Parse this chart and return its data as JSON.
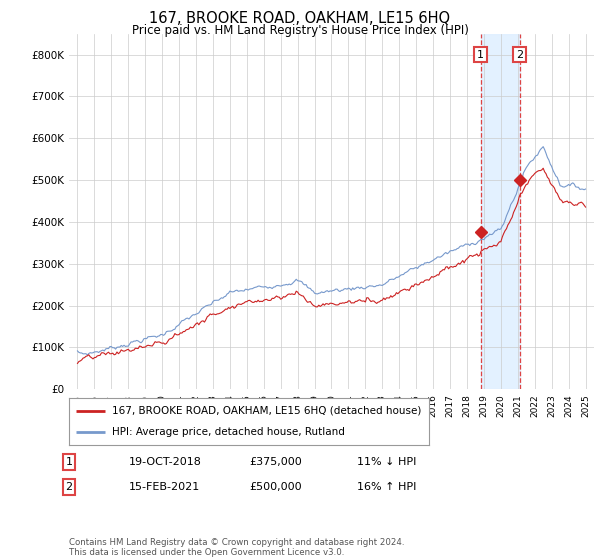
{
  "title": "167, BROOKE ROAD, OAKHAM, LE15 6HQ",
  "subtitle": "Price paid vs. HM Land Registry's House Price Index (HPI)",
  "ylabel_ticks": [
    "£0",
    "£100K",
    "£200K",
    "£300K",
    "£400K",
    "£500K",
    "£600K",
    "£700K",
    "£800K"
  ],
  "ytick_values": [
    0,
    100000,
    200000,
    300000,
    400000,
    500000,
    600000,
    700000,
    800000
  ],
  "ylim": [
    0,
    850000
  ],
  "xlim_start": 1994.5,
  "xlim_end": 2025.5,
  "hpi_color": "#7799cc",
  "price_color": "#cc2222",
  "highlight_color_fill": "#ddeeff",
  "highlight_border_color": "#dd4444",
  "transaction1_x": 2018.8,
  "transaction2_x": 2021.12,
  "transaction1_y": 375000,
  "transaction2_y": 500000,
  "legend_label1": "167, BROOKE ROAD, OAKHAM, LE15 6HQ (detached house)",
  "legend_label2": "HPI: Average price, detached house, Rutland",
  "table_row1": [
    "1",
    "19-OCT-2018",
    "£375,000",
    "11% ↓ HPI"
  ],
  "table_row2": [
    "2",
    "15-FEB-2021",
    "£500,000",
    "16% ↑ HPI"
  ],
  "footer": "Contains HM Land Registry data © Crown copyright and database right 2024.\nThis data is licensed under the Open Government Licence v3.0.",
  "background_color": "#ffffff",
  "grid_color": "#cccccc"
}
